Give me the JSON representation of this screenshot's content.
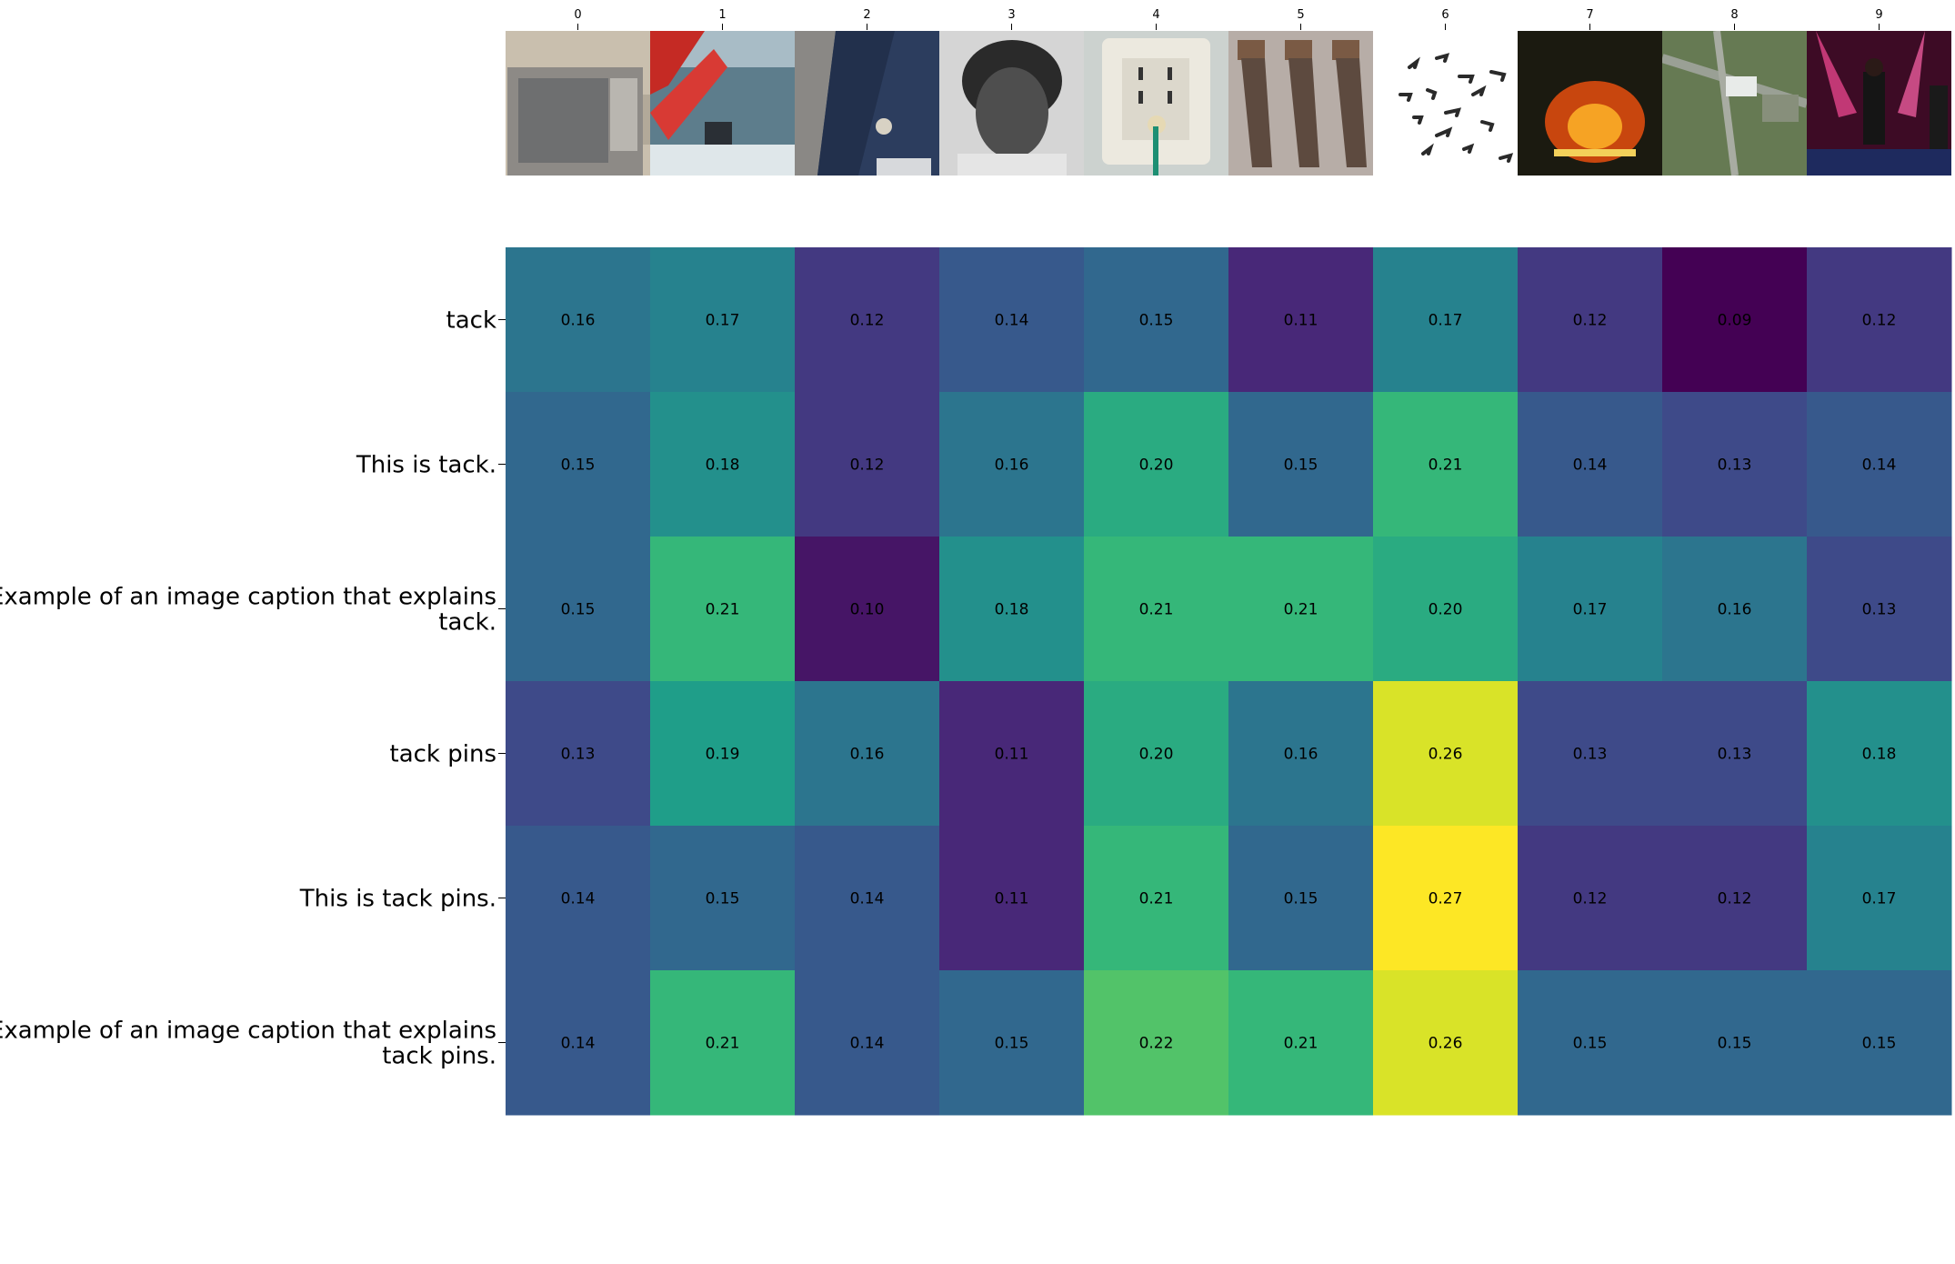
{
  "chart_data": {
    "type": "heatmap",
    "colormap": "viridis",
    "colormap_range": [
      0.09,
      0.27
    ],
    "x_tick_labels": [
      "0",
      "1",
      "2",
      "3",
      "4",
      "5",
      "6",
      "7",
      "8",
      "9"
    ],
    "column_image_icons": [
      "microwave-image-icon",
      "sailboat-race-image-icon",
      "suit-lapel-pin-image-icon",
      "man-portrait-image-icon",
      "electrical-outlet-image-icon",
      "hand-saws-image-icon",
      "tacks-pile-image-icon",
      "furnace-fire-image-icon",
      "airport-aerial-image-icon",
      "concert-stage-image-icon"
    ],
    "rows": [
      {
        "label_lines": [
          "tack"
        ],
        "values": [
          0.16,
          0.17,
          0.12,
          0.14,
          0.15,
          0.11,
          0.17,
          0.12,
          0.09,
          0.12
        ]
      },
      {
        "label_lines": [
          "This is tack."
        ],
        "values": [
          0.15,
          0.18,
          0.12,
          0.16,
          0.2,
          0.15,
          0.21,
          0.14,
          0.13,
          0.14
        ]
      },
      {
        "label_lines": [
          "Example of an image caption that explains",
          "tack."
        ],
        "values": [
          0.15,
          0.21,
          0.1,
          0.18,
          0.21,
          0.21,
          0.2,
          0.17,
          0.16,
          0.13
        ]
      },
      {
        "label_lines": [
          "tack pins"
        ],
        "values": [
          0.13,
          0.19,
          0.16,
          0.11,
          0.2,
          0.16,
          0.26,
          0.13,
          0.13,
          0.18
        ]
      },
      {
        "label_lines": [
          "This is tack pins."
        ],
        "values": [
          0.14,
          0.15,
          0.14,
          0.11,
          0.21,
          0.15,
          0.27,
          0.12,
          0.12,
          0.17
        ]
      },
      {
        "label_lines": [
          "Example of an image caption that explains",
          "tack pins."
        ],
        "values": [
          0.14,
          0.21,
          0.14,
          0.15,
          0.22,
          0.21,
          0.26,
          0.15,
          0.15,
          0.15
        ]
      }
    ]
  }
}
